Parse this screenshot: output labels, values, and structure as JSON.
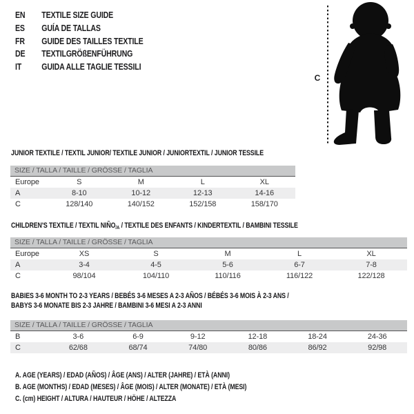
{
  "languages": [
    {
      "code": "EN",
      "title": "TEXTILE SIZE GUIDE"
    },
    {
      "code": "ES",
      "title": "GUÍA DE TALLAS"
    },
    {
      "code": "FR",
      "title": "GUIDE DES TAILLES TEXTILE"
    },
    {
      "code": "DE",
      "title": "TEXTILGRÖßENFÜHRUNG"
    },
    {
      "code": "IT",
      "title": "GUIDA ALLE TAGLIE TESSILI"
    }
  ],
  "figure": {
    "measure_label": "C"
  },
  "tables": [
    {
      "title": "JUNIOR TEXTILE / TEXTIL JUNIOR/ TEXTILE JUNIOR / JUNIORTEXTIL / JUNIOR TESSILE",
      "size_header": "SIZE / TALLA / TAILLE / GRÖSSE / TAGLIA",
      "rows": [
        {
          "label": "Europe",
          "values": [
            "S",
            "M",
            "L",
            "XL"
          ]
        },
        {
          "label": "A",
          "values": [
            "8-10",
            "10-12",
            "12-13",
            "14-16"
          ]
        },
        {
          "label": "C",
          "values": [
            "128/140",
            "140/152",
            "152/158",
            "158/170"
          ]
        }
      ]
    },
    {
      "title_pre": "CHILDREN'S TEXTILE / TEXTIL NIÑO",
      "title_sub": "/A",
      "title_post": " / TEXTILE DES ENFANTS / KINDERTEXTIL / BAMBINI TESSILE",
      "size_header": "SIZE / TALLA / TAILLE / GRÖSSE / TAGLIA",
      "rows": [
        {
          "label": "Europe",
          "values": [
            "XS",
            "S",
            "M",
            "L",
            "XL"
          ]
        },
        {
          "label": "A",
          "values": [
            "3-4",
            "4-5",
            "5-6",
            "6-7",
            "7-8"
          ]
        },
        {
          "label": "C",
          "values": [
            "98/104",
            "104/110",
            "110/116",
            "116/122",
            "122/128"
          ]
        }
      ]
    },
    {
      "title_line1": "BABIES 3-6 MONTH TO 2-3 YEARS / BEBÉS 3-6 MESES A 2-3 AÑOS / BÉBÉS 3-6 MOIS À 2-3 ANS /",
      "title_line2": "BABYS 3-6 MONATE BIS 2-3 JAHRE / BAMBINI 3-6 MESI A 2-3 ANNI",
      "size_header": "SIZE / TALLA / TAILLE / GRÖSSE / TAGLIA",
      "rows": [
        {
          "label": "B",
          "values": [
            "3-6",
            "6-9",
            "9-12",
            "12-18",
            "18-24",
            "24-36"
          ]
        },
        {
          "label": "C",
          "values": [
            "62/68",
            "68/74",
            "74/80",
            "80/86",
            "86/92",
            "92/98"
          ]
        }
      ]
    }
  ],
  "notes": [
    "A. AGE (YEARS) / EDAD (AÑOS) / ÂGE (ANS) / ALTER (JAHRE) / ETÀ (ANNI)",
    "B. AGE (MONTHS) / EDAD (MESES) / ÂGE (MOIS) / ALTER (MONATE) / ETÀ (MESI)",
    "C. (cm) HEIGHT / ALTURA / HAUTEUR / HÖHE / ALTEZZA"
  ],
  "colors": {
    "bar_bg": "#c8c9ca",
    "bar_text": "#59595b",
    "stripe": "#ededee",
    "ink": "#1d1d1f",
    "silhouette": "#0d0d0d"
  }
}
